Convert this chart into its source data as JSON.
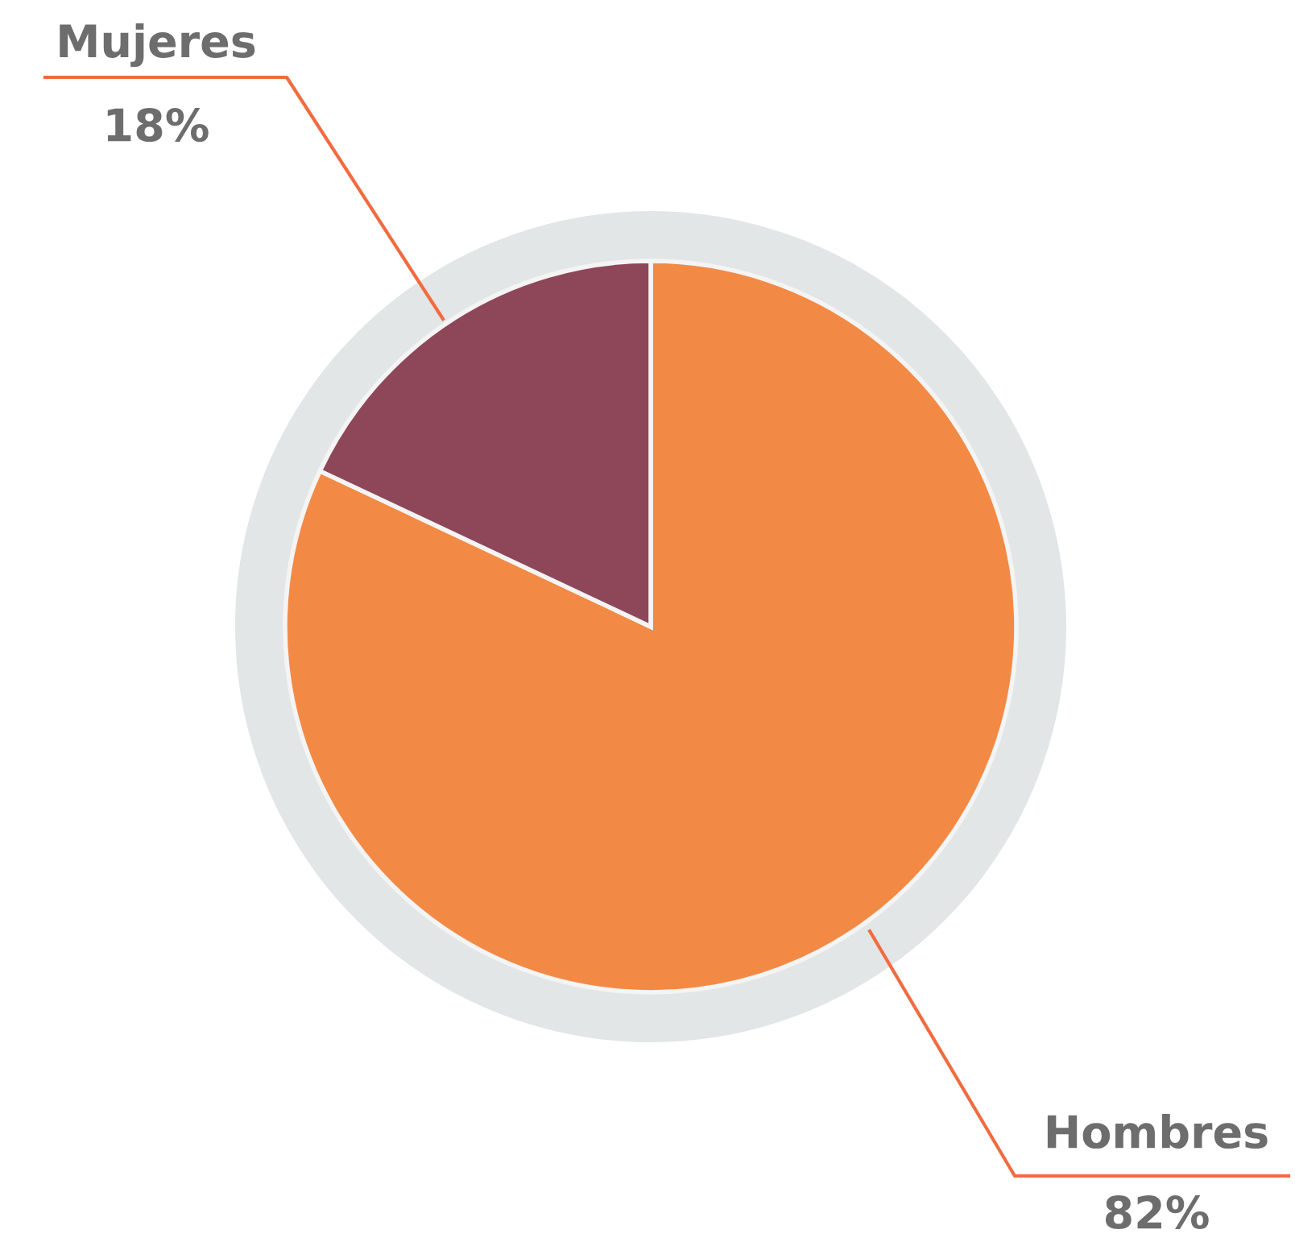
{
  "chart_data": {
    "type": "pie",
    "categories": [
      "Hombres",
      "Mujeres"
    ],
    "values": [
      82,
      18
    ],
    "colors": [
      "#f28a45",
      "#8e4659"
    ],
    "value_labels": [
      "82%",
      "18%"
    ]
  }
}
